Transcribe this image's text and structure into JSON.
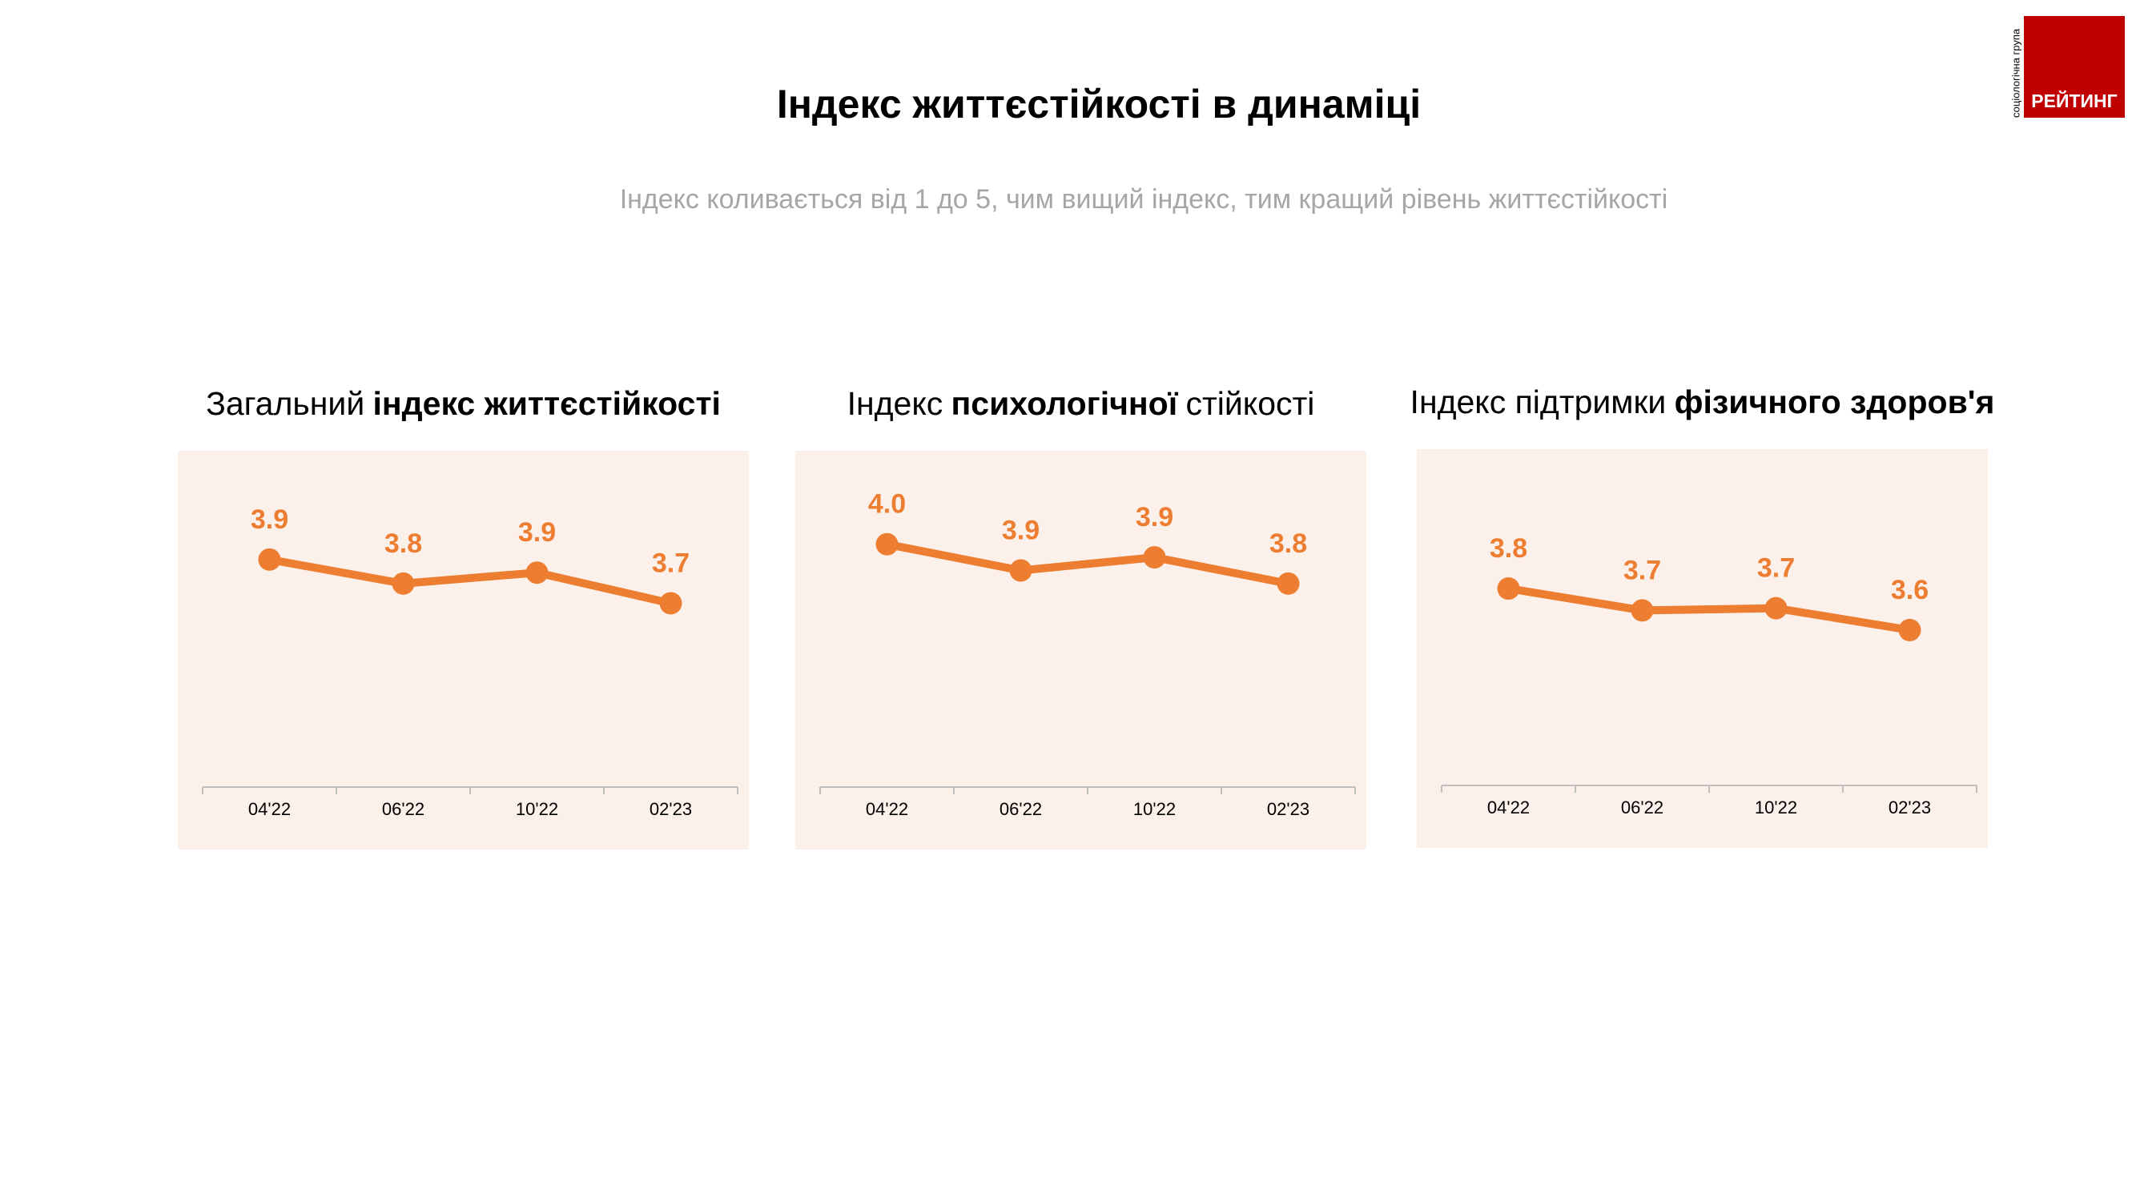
{
  "header": {
    "title": "Індекс життєстійкості в динаміці",
    "subtitle": "Індекс коливається від 1 до 5, чим вищий індекс, тим кращий рівень життєстійкості"
  },
  "logo": {
    "tagline": "соціологічна група",
    "brand": "РЕЙТИНГ"
  },
  "chart_data": [
    {
      "type": "line",
      "title": [
        {
          "text": "Загальний",
          "bold": false
        },
        {
          "text": "індекс життєстійкості",
          "bold": true
        }
      ],
      "categories": [
        "04'22",
        "06'22",
        "10'22",
        "02'23"
      ],
      "values": [
        3.92,
        3.81,
        3.86,
        3.72
      ],
      "value_labels": [
        "3.9",
        "3.8",
        "3.9",
        "3.7"
      ],
      "color": "#ed7d31"
    },
    {
      "type": "line",
      "title": [
        {
          "text": "Індекс",
          "bold": false
        },
        {
          "text": "психологічної",
          "bold": true
        },
        {
          "text": "стійкості",
          "bold": false
        }
      ],
      "categories": [
        "04'22",
        "06'22",
        "10'22",
        "02'23"
      ],
      "values": [
        3.99,
        3.87,
        3.93,
        3.81
      ],
      "value_labels": [
        "4.0",
        "3.9",
        "3.9",
        "3.8"
      ],
      "color": "#ed7d31"
    },
    {
      "type": "line",
      "title": [
        {
          "text": "Індекс підтримки",
          "bold": false
        },
        {
          "text": "фізичного здоров'я",
          "bold": true
        }
      ],
      "categories": [
        "04'22",
        "06'22",
        "10'22",
        "02'23"
      ],
      "values": [
        3.78,
        3.68,
        3.69,
        3.59
      ],
      "value_labels": [
        "3.8",
        "3.7",
        "3.7",
        "3.6"
      ],
      "color": "#ed7d31"
    }
  ]
}
